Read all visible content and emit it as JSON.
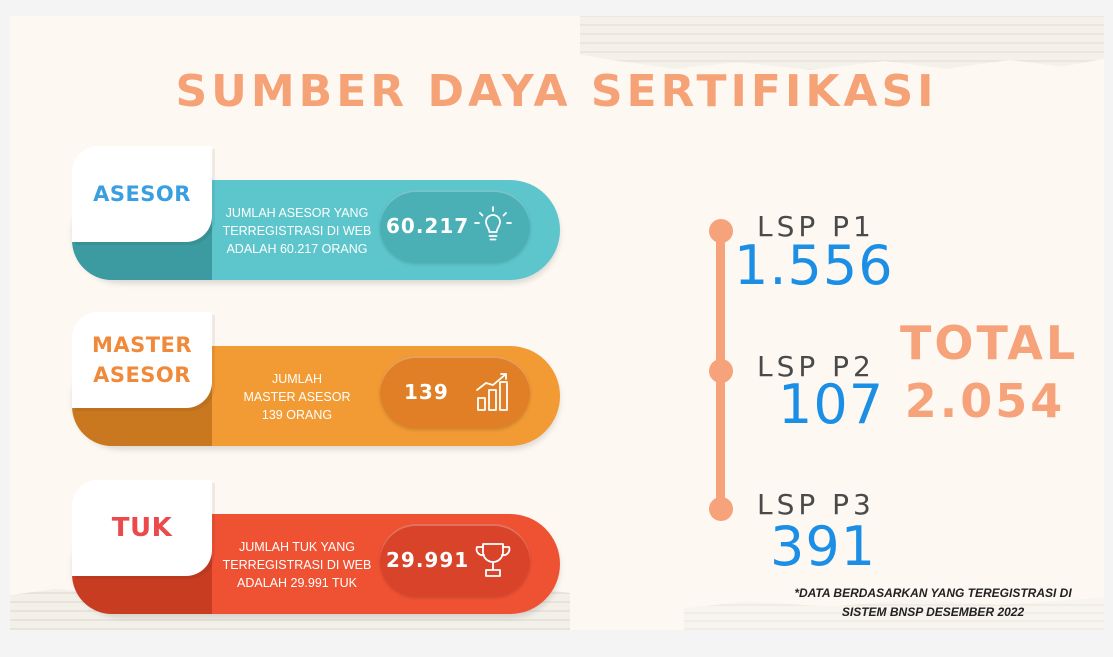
{
  "title": "SUMBER DAYA SERTIFIKASI",
  "cards": [
    {
      "label_lines": [
        "ASESOR"
      ],
      "description_lines": [
        "JUMLAH ASESOR YANG",
        "TERREGISTRASI DI WEB",
        "ADALAH 60.217 ORANG"
      ],
      "value": "60.217",
      "icon": "lightbulb-icon",
      "color": "#5cc6cc"
    },
    {
      "label_lines": [
        "MASTER",
        "ASESOR"
      ],
      "description_lines": [
        "JUMLAH",
        "MASTER ASESOR",
        "139 ORANG"
      ],
      "value": "139",
      "icon": "bar-chart-icon",
      "color": "#f29a34"
    },
    {
      "label_lines": [
        "TUK"
      ],
      "description_lines": [
        "JUMLAH TUK YANG",
        "TERREGISTRASI DI WEB",
        "ADALAH 29.991 TUK"
      ],
      "value": "29.991",
      "icon": "trophy-icon",
      "color": "#ef5233"
    }
  ],
  "lsp": [
    {
      "label": "LSP P1",
      "value": "1.556"
    },
    {
      "label": "LSP P2",
      "value": "107"
    },
    {
      "label": "LSP P3",
      "value": "391"
    }
  ],
  "total": {
    "label": "TOTAL",
    "value": "2.054"
  },
  "note_lines": [
    "*DATA BERDASARKAN YANG TEREGISTRASI DI",
    "SISTEM BNSP DESEMBER 2022"
  ],
  "colors": {
    "accent": "#f6a27a",
    "number_blue": "#1b8fe6"
  }
}
